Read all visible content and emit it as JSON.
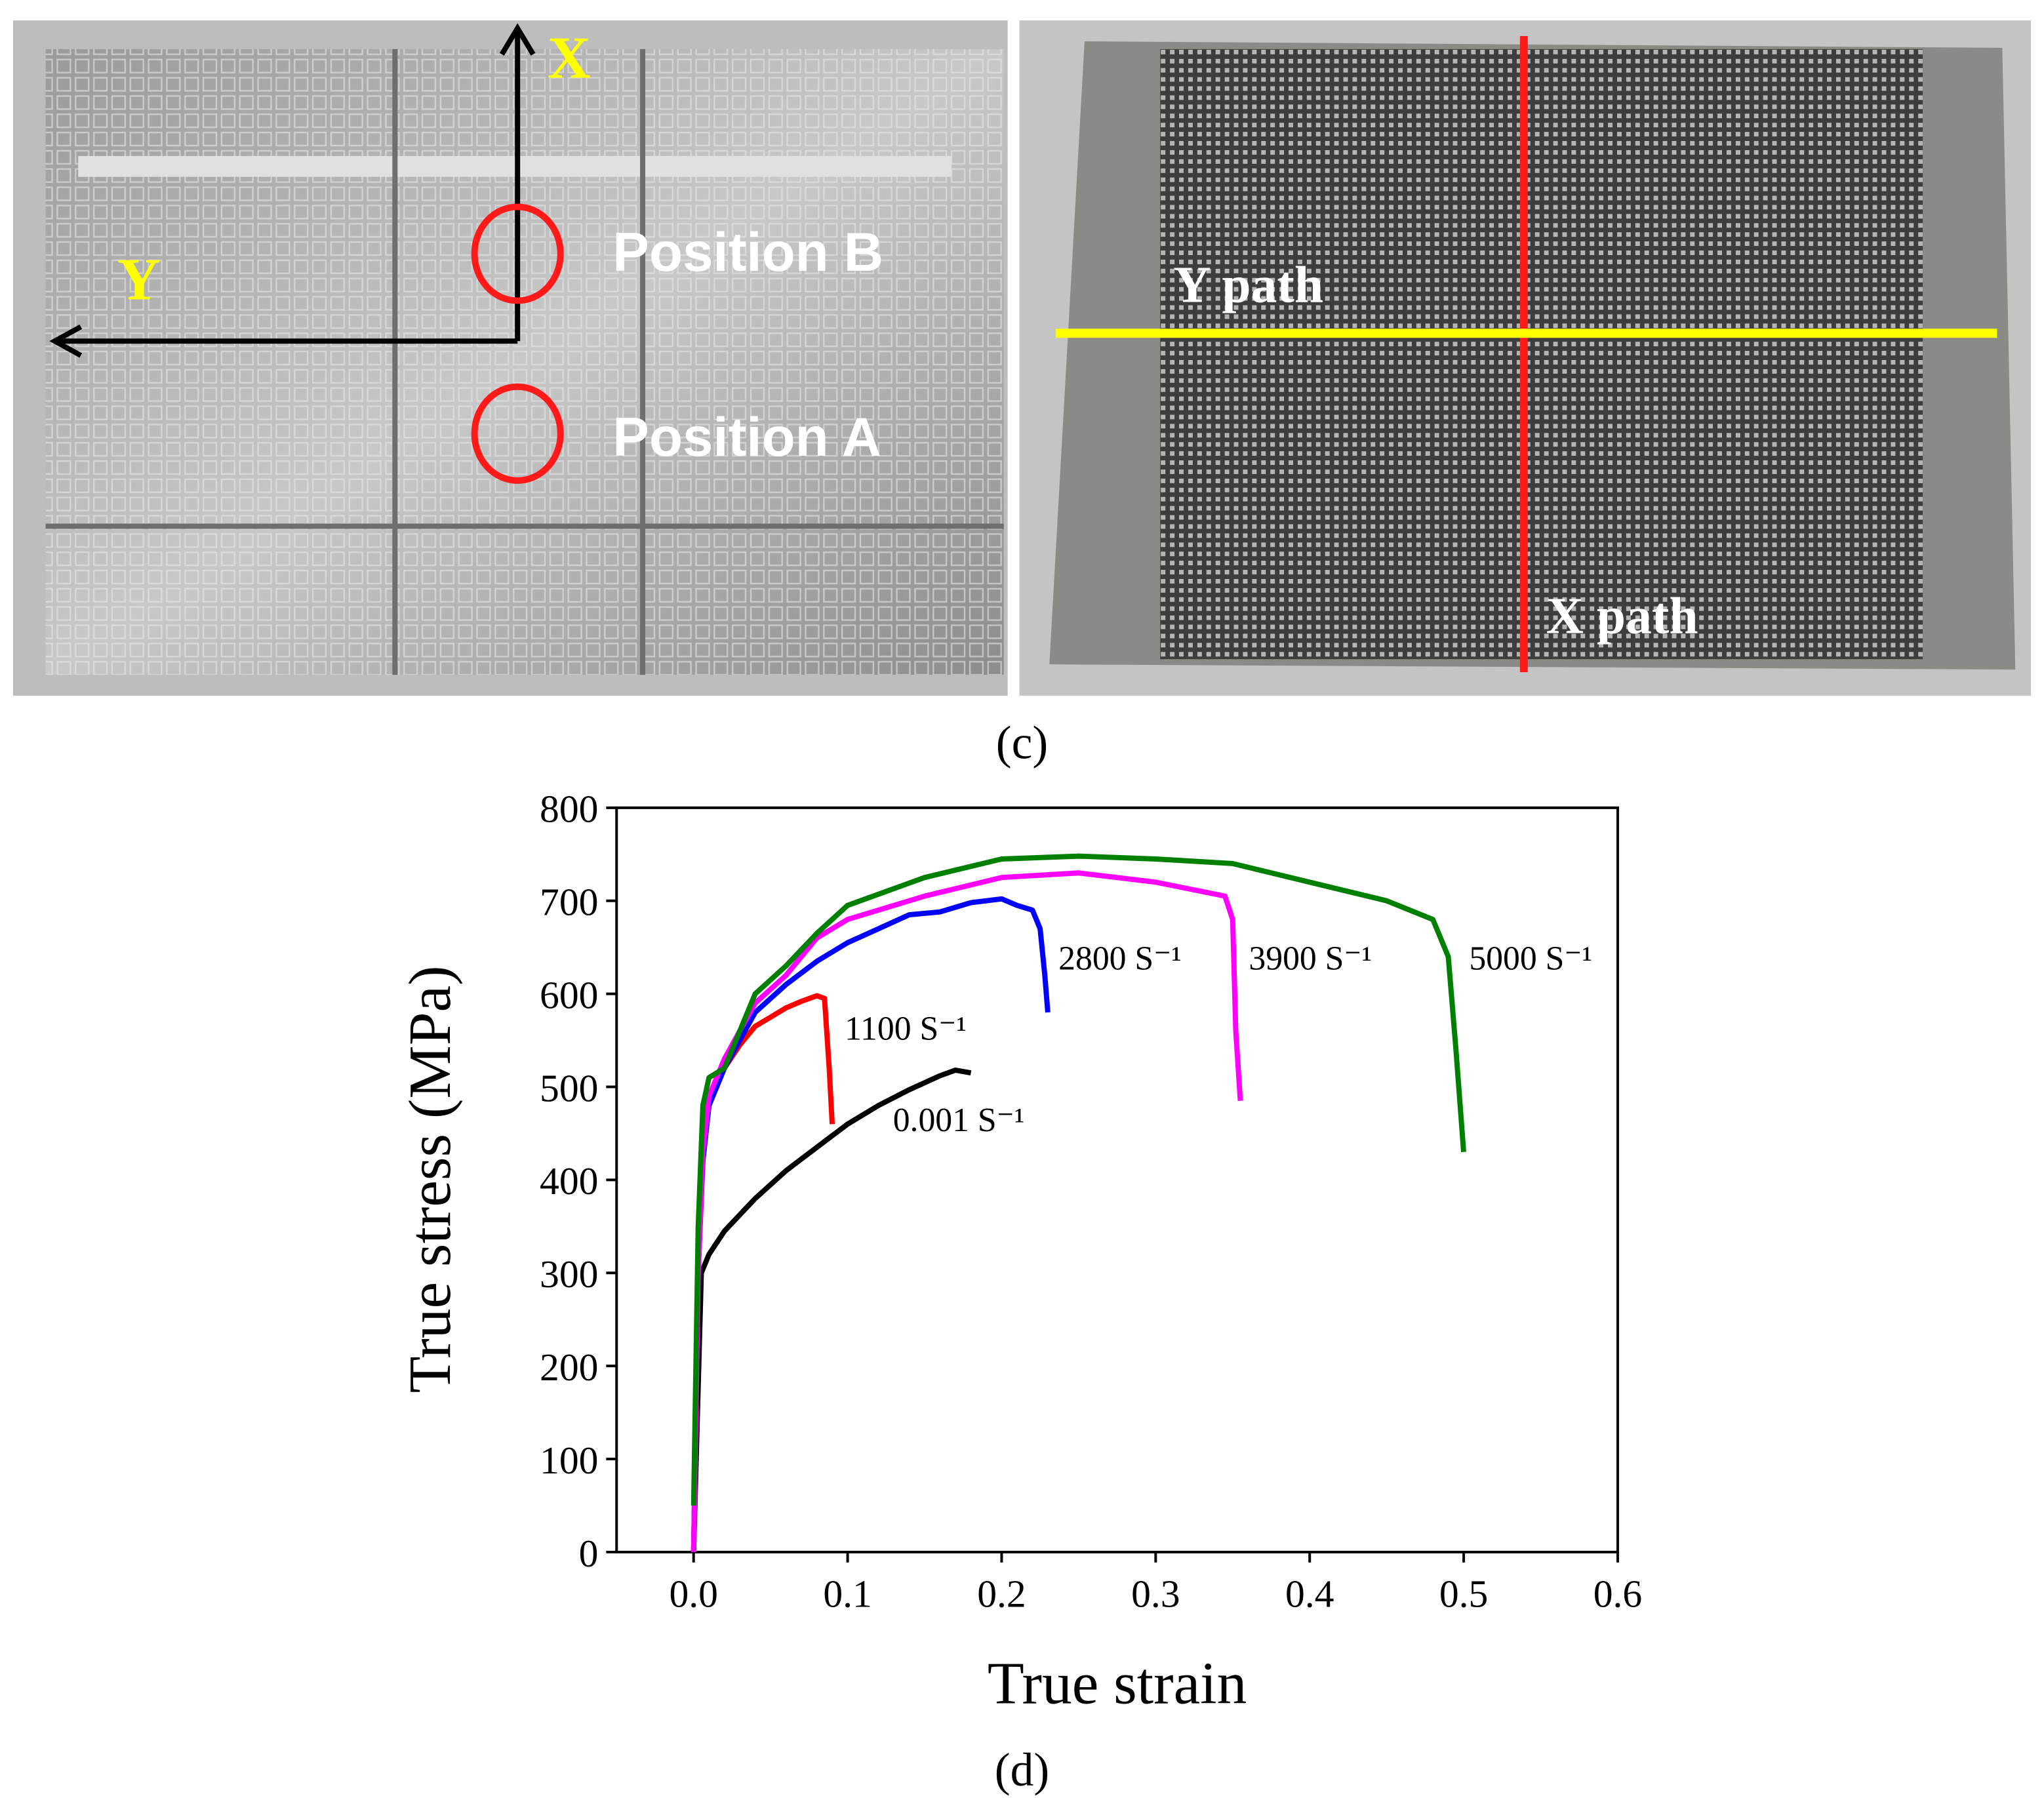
{
  "figure": {
    "photo_left": {
      "axis_x": "X",
      "axis_y": "Y",
      "position_b": "Position B",
      "position_a": "Position A"
    },
    "photo_right": {
      "y_path": "Y path",
      "x_path": "X path"
    },
    "caption_c": "(c)",
    "caption_d": "(d)"
  },
  "chart_data": {
    "type": "line",
    "x_label": "True strain",
    "y_label": "True stress (MPa)",
    "xlim": [
      -0.05,
      0.6
    ],
    "ylim": [
      0,
      800
    ],
    "xticks": [
      {
        "value": 0,
        "label": "0.0"
      },
      0.1,
      0.2,
      0.3,
      0.4,
      0.5,
      0.6
    ],
    "yticks": [
      0,
      100,
      200,
      300,
      400,
      500,
      600,
      700,
      800
    ],
    "series": [
      {
        "name": "0.001 S⁻¹",
        "color": "#000000",
        "x": [
          0,
          0.005,
          0.01,
          0.02,
          0.04,
          0.06,
          0.08,
          0.1,
          0.12,
          0.14,
          0.16,
          0.17,
          0.18
        ],
        "values": [
          0,
          300,
          320,
          345,
          380,
          410,
          435,
          460,
          480,
          497,
          512,
          518,
          515
        ]
      },
      {
        "name": "1100 S⁻¹",
        "color": "#ff0000",
        "x": [
          0,
          0.003,
          0.005,
          0.01,
          0.02,
          0.03,
          0.04,
          0.05,
          0.06,
          0.07,
          0.08,
          0.085,
          0.088,
          0.09
        ],
        "values": [
          0,
          300,
          420,
          480,
          520,
          545,
          565,
          575,
          585,
          592,
          598,
          595,
          520,
          460
        ]
      },
      {
        "name": "2800 S⁻¹",
        "color": "#0000ff",
        "x": [
          0,
          0.003,
          0.006,
          0.01,
          0.02,
          0.04,
          0.06,
          0.08,
          0.1,
          0.12,
          0.14,
          0.16,
          0.18,
          0.2,
          0.21,
          0.22,
          0.225,
          0.228,
          0.23
        ],
        "values": [
          0,
          300,
          420,
          480,
          520,
          580,
          610,
          635,
          655,
          670,
          685,
          688,
          698,
          702,
          695,
          690,
          670,
          620,
          580
        ]
      },
      {
        "name": "3900 S⁻¹",
        "color": "#ff00ff",
        "x": [
          0,
          0.003,
          0.006,
          0.01,
          0.02,
          0.04,
          0.06,
          0.08,
          0.1,
          0.12,
          0.15,
          0.2,
          0.25,
          0.3,
          0.33,
          0.345,
          0.35,
          0.352,
          0.355
        ],
        "values": [
          0,
          300,
          430,
          490,
          530,
          590,
          620,
          660,
          680,
          690,
          705,
          725,
          730,
          720,
          710,
          705,
          680,
          560,
          485
        ]
      },
      {
        "name": "5000 S⁻¹",
        "color": "#008000",
        "x": [
          0,
          0.003,
          0.006,
          0.01,
          0.02,
          0.04,
          0.06,
          0.08,
          0.1,
          0.15,
          0.2,
          0.25,
          0.3,
          0.35,
          0.4,
          0.45,
          0.48,
          0.49,
          0.495,
          0.5
        ],
        "values": [
          50,
          350,
          480,
          510,
          520,
          600,
          630,
          665,
          695,
          725,
          745,
          748,
          745,
          740,
          720,
          700,
          680,
          640,
          540,
          430
        ]
      }
    ]
  }
}
